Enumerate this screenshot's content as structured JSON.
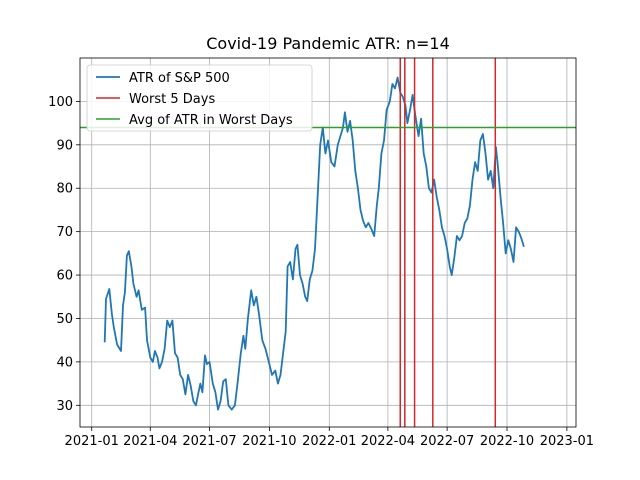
{
  "chart_data": {
    "type": "line",
    "title": "Covid-19 Pandemic ATR: n=14",
    "xlabel": "",
    "ylabel": "",
    "grid": true,
    "legend_position": "top-left",
    "xlim": [
      "2020-12-14",
      "2023-01-15"
    ],
    "ylim": [
      25,
      110
    ],
    "x_ticks": [
      "2021-01",
      "2021-04",
      "2021-07",
      "2021-10",
      "2022-01",
      "2022-04",
      "2022-07",
      "2022-10",
      "2023-01"
    ],
    "y_ticks": [
      30,
      40,
      50,
      60,
      70,
      80,
      90,
      100
    ],
    "series": [
      {
        "name": "ATR of S&P 500",
        "color": "#1f77b4",
        "points": [
          [
            "2021-01-21",
            44.5
          ],
          [
            "2021-01-23",
            54.5
          ],
          [
            "2021-01-28",
            56.8
          ],
          [
            "2021-02-01",
            51
          ],
          [
            "2021-02-04",
            48
          ],
          [
            "2021-02-09",
            44
          ],
          [
            "2021-02-15",
            42.5
          ],
          [
            "2021-02-18",
            53
          ],
          [
            "2021-02-21",
            56
          ],
          [
            "2021-02-24",
            64.5
          ],
          [
            "2021-02-27",
            65.5
          ],
          [
            "2021-03-03",
            62
          ],
          [
            "2021-03-06",
            58
          ],
          [
            "2021-03-11",
            55
          ],
          [
            "2021-03-14",
            56.5
          ],
          [
            "2021-03-19",
            52
          ],
          [
            "2021-03-24",
            52.5
          ],
          [
            "2021-03-27",
            45
          ],
          [
            "2021-04-01",
            41
          ],
          [
            "2021-04-05",
            40
          ],
          [
            "2021-04-08",
            42.5
          ],
          [
            "2021-04-12",
            41
          ],
          [
            "2021-04-15",
            38.5
          ],
          [
            "2021-04-19",
            40
          ],
          [
            "2021-04-23",
            43
          ],
          [
            "2021-04-27",
            49.5
          ],
          [
            "2021-05-01",
            48
          ],
          [
            "2021-05-05",
            49.5
          ],
          [
            "2021-05-09",
            42
          ],
          [
            "2021-05-13",
            41
          ],
          [
            "2021-05-17",
            37
          ],
          [
            "2021-05-21",
            36
          ],
          [
            "2021-05-25",
            32.5
          ],
          [
            "2021-05-29",
            37
          ],
          [
            "2021-06-02",
            34.5
          ],
          [
            "2021-06-06",
            31
          ],
          [
            "2021-06-10",
            30
          ],
          [
            "2021-06-14",
            33
          ],
          [
            "2021-06-17",
            35
          ],
          [
            "2021-06-20",
            33
          ],
          [
            "2021-06-24",
            41.5
          ],
          [
            "2021-06-27",
            39.5
          ],
          [
            "2021-07-01",
            40
          ],
          [
            "2021-07-06",
            35
          ],
          [
            "2021-07-10",
            33
          ],
          [
            "2021-07-14",
            29
          ],
          [
            "2021-07-18",
            31
          ],
          [
            "2021-07-22",
            35.5
          ],
          [
            "2021-07-26",
            36
          ],
          [
            "2021-07-30",
            30
          ],
          [
            "2021-08-04",
            29
          ],
          [
            "2021-08-09",
            30
          ],
          [
            "2021-08-13",
            35
          ],
          [
            "2021-08-18",
            42
          ],
          [
            "2021-08-22",
            46
          ],
          [
            "2021-08-25",
            43
          ],
          [
            "2021-08-29",
            50
          ],
          [
            "2021-09-03",
            56.5
          ],
          [
            "2021-09-07",
            53
          ],
          [
            "2021-09-11",
            55
          ],
          [
            "2021-09-15",
            51
          ],
          [
            "2021-09-20",
            45
          ],
          [
            "2021-09-25",
            43
          ],
          [
            "2021-09-30",
            40
          ],
          [
            "2021-10-05",
            37
          ],
          [
            "2021-10-10",
            38
          ],
          [
            "2021-10-14",
            35
          ],
          [
            "2021-10-18",
            37
          ],
          [
            "2021-10-22",
            42
          ],
          [
            "2021-10-26",
            47
          ],
          [
            "2021-10-29",
            62
          ],
          [
            "2021-11-02",
            63
          ],
          [
            "2021-11-06",
            59
          ],
          [
            "2021-11-10",
            66
          ],
          [
            "2021-11-13",
            67
          ],
          [
            "2021-11-17",
            60
          ],
          [
            "2021-11-21",
            58
          ],
          [
            "2021-11-25",
            55
          ],
          [
            "2021-11-28",
            54
          ],
          [
            "2021-12-02",
            59
          ],
          [
            "2021-12-06",
            61
          ],
          [
            "2021-12-10",
            66
          ],
          [
            "2021-12-14",
            78
          ],
          [
            "2021-12-18",
            90
          ],
          [
            "2021-12-22",
            94
          ],
          [
            "2021-12-26",
            88
          ],
          [
            "2021-12-30",
            91
          ],
          [
            "2022-01-04",
            86
          ],
          [
            "2022-01-09",
            85
          ],
          [
            "2022-01-14",
            90
          ],
          [
            "2022-01-18",
            92
          ],
          [
            "2022-01-22",
            94
          ],
          [
            "2022-01-25",
            97.5
          ],
          [
            "2022-01-29",
            93
          ],
          [
            "2022-02-02",
            95.5
          ],
          [
            "2022-02-06",
            91
          ],
          [
            "2022-02-10",
            84
          ],
          [
            "2022-02-14",
            80
          ],
          [
            "2022-02-18",
            75
          ],
          [
            "2022-02-22",
            72.5
          ],
          [
            "2022-02-26",
            71
          ],
          [
            "2022-03-02",
            72
          ],
          [
            "2022-03-07",
            70.5
          ],
          [
            "2022-03-11",
            69
          ],
          [
            "2022-03-15",
            76
          ],
          [
            "2022-03-18",
            80
          ],
          [
            "2022-03-22",
            88
          ],
          [
            "2022-03-26",
            91
          ],
          [
            "2022-03-30",
            98
          ],
          [
            "2022-04-04",
            100
          ],
          [
            "2022-04-08",
            104
          ],
          [
            "2022-04-12",
            103
          ],
          [
            "2022-04-16",
            105.5
          ],
          [
            "2022-04-20",
            102
          ],
          [
            "2022-04-24",
            101
          ],
          [
            "2022-04-28",
            99
          ],
          [
            "2022-05-01",
            95
          ],
          [
            "2022-05-05",
            98
          ],
          [
            "2022-05-09",
            101.5
          ],
          [
            "2022-05-13",
            97
          ],
          [
            "2022-05-18",
            92
          ],
          [
            "2022-05-22",
            96
          ],
          [
            "2022-05-26",
            88
          ],
          [
            "2022-05-30",
            85
          ],
          [
            "2022-06-03",
            80
          ],
          [
            "2022-06-07",
            79
          ],
          [
            "2022-06-11",
            82
          ],
          [
            "2022-06-15",
            78
          ],
          [
            "2022-06-19",
            75
          ],
          [
            "2022-06-23",
            71
          ],
          [
            "2022-06-27",
            69
          ],
          [
            "2022-07-01",
            66
          ],
          [
            "2022-07-05",
            62
          ],
          [
            "2022-07-08",
            60
          ],
          [
            "2022-07-12",
            64
          ],
          [
            "2022-07-16",
            69
          ],
          [
            "2022-07-20",
            68
          ],
          [
            "2022-07-24",
            69
          ],
          [
            "2022-07-28",
            72
          ],
          [
            "2022-08-01",
            73
          ],
          [
            "2022-08-05",
            76
          ],
          [
            "2022-08-09",
            82
          ],
          [
            "2022-08-13",
            86
          ],
          [
            "2022-08-17",
            84
          ],
          [
            "2022-08-21",
            91
          ],
          [
            "2022-08-25",
            92.5
          ],
          [
            "2022-08-29",
            88
          ],
          [
            "2022-09-02",
            82
          ],
          [
            "2022-09-06",
            84
          ],
          [
            "2022-09-10",
            80
          ],
          [
            "2022-09-14",
            89.5
          ],
          [
            "2022-09-17",
            85
          ],
          [
            "2022-09-21",
            78
          ],
          [
            "2022-09-25",
            72
          ],
          [
            "2022-09-29",
            65
          ],
          [
            "2022-10-03",
            68
          ],
          [
            "2022-10-07",
            66
          ],
          [
            "2022-10-11",
            63
          ],
          [
            "2022-10-15",
            71
          ],
          [
            "2022-10-19",
            70
          ],
          [
            "2022-10-23",
            68.5
          ],
          [
            "2022-10-27",
            66.5
          ]
        ]
      },
      {
        "name": "Worst 5 Days",
        "color": "#d62728",
        "dates": [
          "2022-04-20",
          "2022-04-27",
          "2022-05-12",
          "2022-06-09",
          "2022-09-13"
        ]
      },
      {
        "name": "Avg of ATR in Worst Days",
        "color": "#2ca02c",
        "value": 94
      }
    ]
  }
}
